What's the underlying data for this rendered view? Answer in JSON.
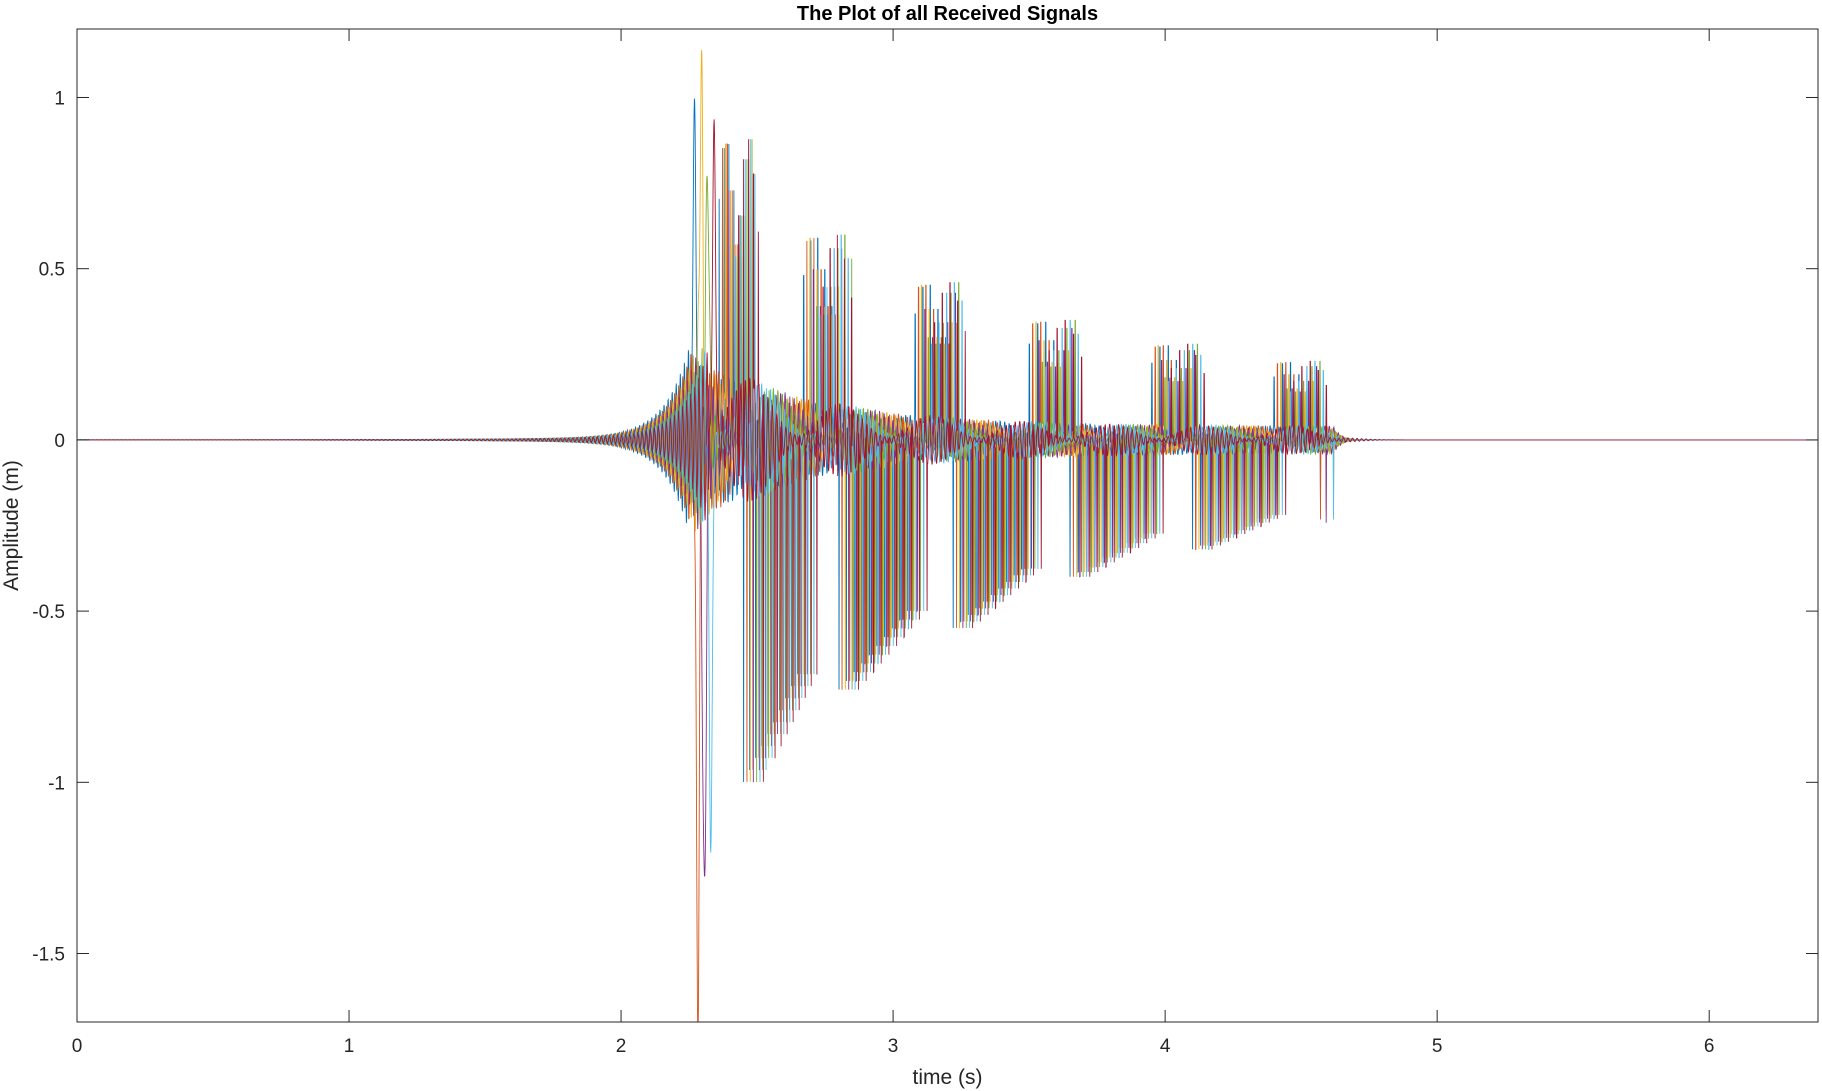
{
  "chart_data": {
    "type": "line",
    "title": "The Plot of all Received Signals",
    "xlabel": "time (s)",
    "ylabel": "Amplitude (m)",
    "xlim": [
      0,
      6.4
    ],
    "ylim": [
      -1.7,
      1.2
    ],
    "xticks": [
      0,
      1,
      2,
      3,
      4,
      5,
      6
    ],
    "xtick_labels": [
      "0",
      "1",
      "2",
      "3",
      "4",
      "5",
      "6"
    ],
    "yticks": [
      -1.5,
      -1,
      -0.5,
      0,
      0.5,
      1
    ],
    "ytick_labels": [
      "-1.5",
      "-1",
      "-0.5",
      "0",
      "0.5",
      "1"
    ],
    "grid": false,
    "legend": "none",
    "series_colors": [
      "#0072BD",
      "#D95319",
      "#EDB120",
      "#7E2F8E",
      "#77AC30",
      "#4DBEEE",
      "#A2142F"
    ],
    "overlaid_signal_count": 7,
    "signal_onset_s": 2.25,
    "signal_end_s": 4.58,
    "main_peak": {
      "t": 2.25,
      "max": 1.12,
      "min": -1.69
    },
    "bursts": [
      {
        "t_start": 2.36,
        "t_end": 2.45,
        "max": 0.88,
        "min": -1.0
      },
      {
        "t_start": 2.67,
        "t_end": 2.8,
        "max": 0.6,
        "min": -0.73
      },
      {
        "t_start": 3.08,
        "t_end": 3.22,
        "max": 0.46,
        "min": -0.55
      },
      {
        "t_start": 3.5,
        "t_end": 3.65,
        "max": 0.35,
        "min": -0.4
      },
      {
        "t_start": 3.95,
        "t_end": 4.1,
        "max": 0.28,
        "min": -0.32
      },
      {
        "t_start": 4.4,
        "t_end": 4.55,
        "max": 0.23,
        "min": -0.26
      }
    ]
  }
}
